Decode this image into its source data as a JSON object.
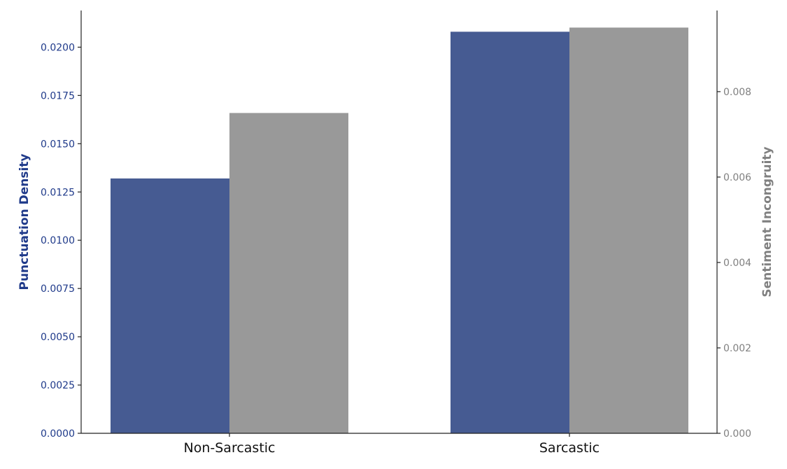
{
  "chart_data": {
    "type": "bar",
    "categories": [
      "Non-Sarcastic",
      "Sarcastic"
    ],
    "series": [
      {
        "name": "",
        "axis": "left",
        "values": [
          0.0132,
          0.0208
        ],
        "color": "#465b92"
      },
      {
        "name": "",
        "axis": "right",
        "values": [
          0.0075,
          0.0095
        ],
        "color": "#999999"
      }
    ],
    "ylabel": "Punctuation Density",
    "y2label": "Sentiment Incongruity",
    "ylim": [
      0,
      0.0219
    ],
    "y2lim": [
      0,
      0.0099
    ],
    "yticks": [
      "0.0000",
      "0.0025",
      "0.0050",
      "0.0075",
      "0.0100",
      "0.0125",
      "0.0150",
      "0.0175",
      "0.0200"
    ],
    "y2ticks": [
      "0.000",
      "0.002",
      "0.004",
      "0.006",
      "0.008"
    ],
    "ylabel_color": "#1f3a8a",
    "y2label_color": "#808080",
    "grid": false,
    "legend": "none"
  }
}
